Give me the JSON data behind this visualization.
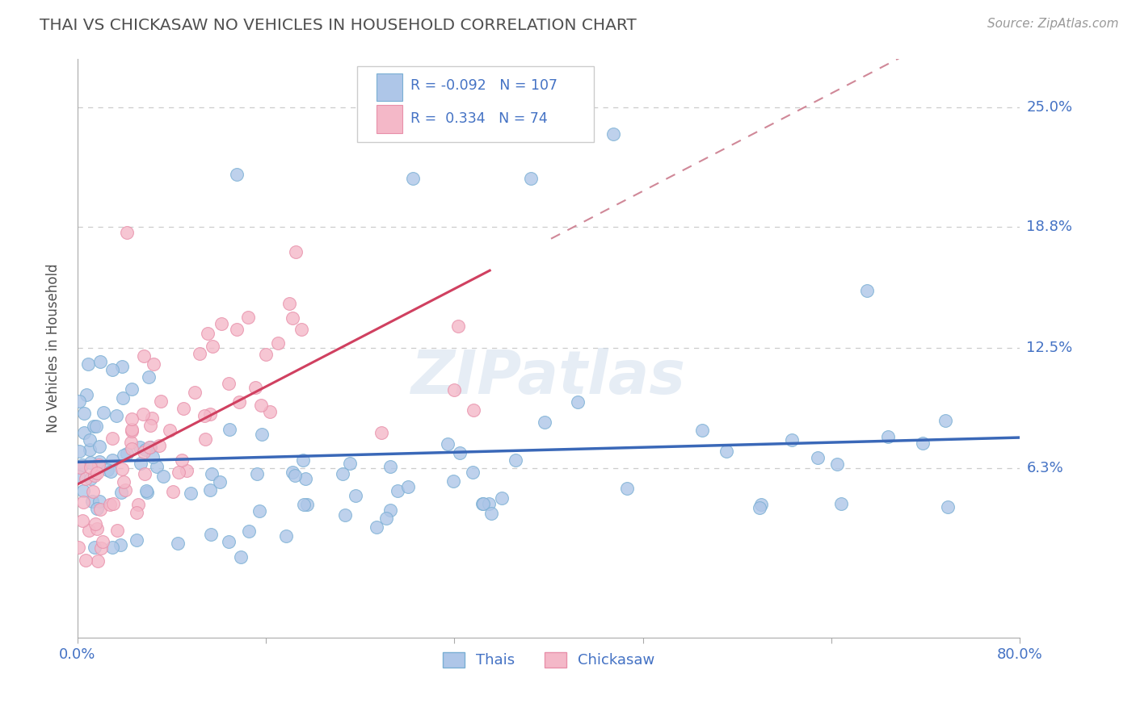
{
  "title": "THAI VS CHICKASAW NO VEHICLES IN HOUSEHOLD CORRELATION CHART",
  "source": "Source: ZipAtlas.com",
  "ylabel": "No Vehicles in Household",
  "ytick_labels": [
    "6.3%",
    "12.5%",
    "18.8%",
    "25.0%"
  ],
  "ytick_values": [
    0.063,
    0.125,
    0.188,
    0.25
  ],
  "xmin": 0.0,
  "xmax": 0.8,
  "ymin": -0.025,
  "ymax": 0.275,
  "thai_color": "#aec6e8",
  "thai_edge_color": "#7aafd4",
  "chickasaw_color": "#f4b8c8",
  "chickasaw_edge_color": "#e890aa",
  "thai_R": -0.092,
  "thai_N": 107,
  "chickasaw_R": 0.334,
  "chickasaw_N": 74,
  "trend_thai_color": "#3a68b8",
  "trend_chickasaw_solid_color": "#d04060",
  "trend_chickasaw_dash_color": "#d08898",
  "watermark": "ZIPatlas",
  "background_color": "#ffffff",
  "grid_color": "#cccccc",
  "axis_label_color": "#4472c4",
  "title_color": "#505050"
}
